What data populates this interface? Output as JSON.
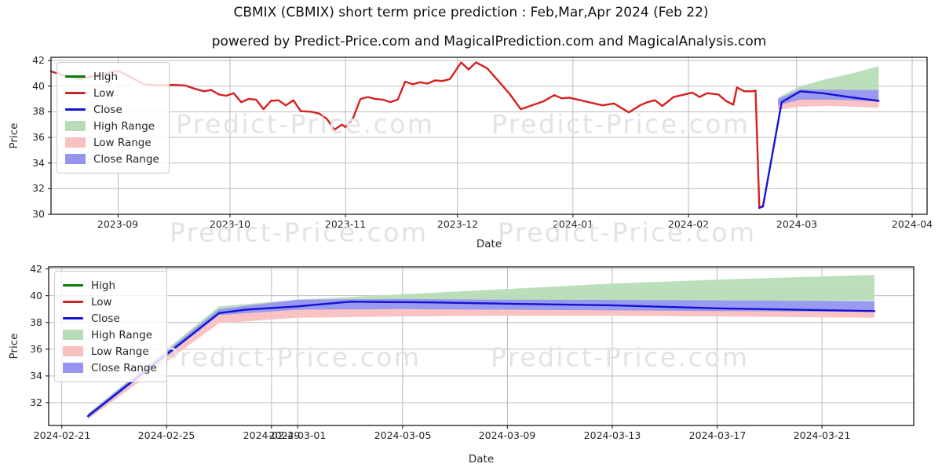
{
  "page": {
    "title": "CBMIX (CBMIX) short term price prediction : Feb,Mar,Apr 2024 (Feb 22)",
    "subtitle": "powered by Predict-Price.com and MagicalPrediction.com and MagicalAnalysis.com",
    "watermark": "Predict-Price.com"
  },
  "legend": {
    "items": [
      {
        "label": "High",
        "type": "line",
        "color": "#067d06"
      },
      {
        "label": "Low",
        "type": "line",
        "color": "#c62828"
      },
      {
        "label": "Close",
        "type": "line",
        "color": "#1414d2"
      },
      {
        "label": "High Range",
        "type": "patch",
        "color": "#b7dcb7"
      },
      {
        "label": "Low Range",
        "type": "patch",
        "color": "#f9c0c0"
      },
      {
        "label": "Close Range",
        "type": "patch",
        "color": "#9595f0"
      }
    ],
    "position": "upper left"
  },
  "chart_data": [
    {
      "panel": "top",
      "type": "line",
      "xlabel": "Date",
      "ylabel": "Price",
      "grid": true,
      "ylim": [
        30.0,
        42.25
      ],
      "yticks": [
        30,
        32,
        34,
        36,
        38,
        40,
        42
      ],
      "xlim": [
        "2023-08-14",
        "2024-04-05"
      ],
      "xticks": [
        {
          "date": "2023-09-01",
          "label": "2023-09"
        },
        {
          "date": "2023-10-01",
          "label": "2023-10"
        },
        {
          "date": "2023-11-01",
          "label": "2023-11"
        },
        {
          "date": "2023-12-01",
          "label": "2023-12"
        },
        {
          "date": "2024-01-01",
          "label": "2024-01"
        },
        {
          "date": "2024-02-01",
          "label": "2024-02"
        },
        {
          "date": "2024-03-01",
          "label": "2024-03"
        },
        {
          "date": "2024-04-01",
          "label": "2024-04"
        }
      ],
      "bands": [
        {
          "name": "High Range",
          "color": "#b7dcb7",
          "points": [
            [
              "2024-02-25",
              38.85,
              39.1
            ],
            [
              "2024-03-02",
              39.6,
              40.0
            ],
            [
              "2024-03-09",
              39.6,
              40.55
            ],
            [
              "2024-03-16",
              39.65,
              41.0
            ],
            [
              "2024-03-23",
              39.7,
              41.55
            ]
          ]
        },
        {
          "name": "Low Range",
          "color": "#f9c0c0",
          "points": [
            [
              "2024-02-25",
              38.15,
              38.75
            ],
            [
              "2024-03-02",
              38.4,
              39.1
            ],
            [
              "2024-03-09",
              38.45,
              39.0
            ],
            [
              "2024-03-16",
              38.4,
              38.95
            ],
            [
              "2024-03-23",
              38.3,
              38.9
            ]
          ]
        },
        {
          "name": "Close Range",
          "color": "#9595f0",
          "points": [
            [
              "2024-02-25",
              38.5,
              39.0
            ],
            [
              "2024-03-02",
              38.95,
              39.75
            ],
            [
              "2024-03-09",
              38.95,
              39.72
            ],
            [
              "2024-03-16",
              38.9,
              39.7
            ],
            [
              "2024-03-23",
              38.8,
              39.7
            ]
          ]
        }
      ],
      "series": [
        {
          "name": "Low",
          "color": "#d81f1f",
          "points": [
            [
              "2023-08-14",
              41.15
            ],
            [
              "2023-08-18",
              40.8
            ],
            [
              "2023-08-22",
              40.55
            ],
            [
              "2023-08-27",
              40.9
            ],
            [
              "2023-09-01",
              41.2
            ],
            [
              "2023-09-05",
              40.6
            ],
            [
              "2023-09-08",
              40.15
            ],
            [
              "2023-09-12",
              40.05
            ],
            [
              "2023-09-16",
              40.1
            ],
            [
              "2023-09-19",
              40.05
            ],
            [
              "2023-09-21",
              39.85
            ],
            [
              "2023-09-24",
              39.6
            ],
            [
              "2023-09-26",
              39.7
            ],
            [
              "2023-09-28",
              39.35
            ],
            [
              "2023-09-30",
              39.25
            ],
            [
              "2023-10-02",
              39.45
            ],
            [
              "2023-10-04",
              38.75
            ],
            [
              "2023-10-06",
              39.0
            ],
            [
              "2023-10-08",
              38.95
            ],
            [
              "2023-10-10",
              38.2
            ],
            [
              "2023-10-12",
              38.85
            ],
            [
              "2023-10-14",
              38.9
            ],
            [
              "2023-10-16",
              38.5
            ],
            [
              "2023-10-18",
              38.9
            ],
            [
              "2023-10-20",
              38.05
            ],
            [
              "2023-10-23",
              38.0
            ],
            [
              "2023-10-25",
              37.85
            ],
            [
              "2023-10-27",
              37.45
            ],
            [
              "2023-10-29",
              36.6
            ],
            [
              "2023-10-31",
              37.0
            ],
            [
              "2023-11-01",
              36.8
            ],
            [
              "2023-11-03",
              37.5
            ],
            [
              "2023-11-05",
              39.0
            ],
            [
              "2023-11-07",
              39.15
            ],
            [
              "2023-11-09",
              39.0
            ],
            [
              "2023-11-11",
              38.95
            ],
            [
              "2023-11-13",
              38.75
            ],
            [
              "2023-11-15",
              38.95
            ],
            [
              "2023-11-17",
              40.35
            ],
            [
              "2023-11-19",
              40.15
            ],
            [
              "2023-11-21",
              40.3
            ],
            [
              "2023-11-23",
              40.2
            ],
            [
              "2023-11-25",
              40.45
            ],
            [
              "2023-11-27",
              40.4
            ],
            [
              "2023-11-29",
              40.55
            ],
            [
              "2023-12-02",
              41.85
            ],
            [
              "2023-12-04",
              41.3
            ],
            [
              "2023-12-06",
              41.85
            ],
            [
              "2023-12-09",
              41.4
            ],
            [
              "2023-12-12",
              40.4
            ],
            [
              "2023-12-15",
              39.4
            ],
            [
              "2023-12-18",
              38.2
            ],
            [
              "2023-12-21",
              38.5
            ],
            [
              "2023-12-24",
              38.8
            ],
            [
              "2023-12-27",
              39.3
            ],
            [
              "2023-12-29",
              39.05
            ],
            [
              "2023-12-31",
              39.1
            ],
            [
              "2024-01-03",
              38.9
            ],
            [
              "2024-01-06",
              38.7
            ],
            [
              "2024-01-09",
              38.5
            ],
            [
              "2024-01-12",
              38.65
            ],
            [
              "2024-01-16",
              37.95
            ],
            [
              "2024-01-19",
              38.5
            ],
            [
              "2024-01-21",
              38.75
            ],
            [
              "2024-01-23",
              38.9
            ],
            [
              "2024-01-25",
              38.45
            ],
            [
              "2024-01-28",
              39.15
            ],
            [
              "2024-01-31",
              39.35
            ],
            [
              "2024-02-02",
              39.5
            ],
            [
              "2024-02-04",
              39.15
            ],
            [
              "2024-02-06",
              39.45
            ],
            [
              "2024-02-09",
              39.35
            ],
            [
              "2024-02-11",
              38.85
            ],
            [
              "2024-02-13",
              38.55
            ],
            [
              "2024-02-14",
              39.9
            ],
            [
              "2024-02-16",
              39.6
            ],
            [
              "2024-02-18",
              39.6
            ],
            [
              "2024-02-19",
              39.65
            ],
            [
              "2024-02-20",
              30.5
            ],
            [
              "2024-02-21",
              30.6
            ]
          ]
        },
        {
          "name": "Close",
          "color": "#1414d2",
          "points": [
            [
              "2024-02-20",
              30.5
            ],
            [
              "2024-02-21",
              30.65
            ],
            [
              "2024-02-26",
              38.75
            ],
            [
              "2024-03-02",
              39.6
            ],
            [
              "2024-03-08",
              39.45
            ],
            [
              "2024-03-15",
              39.15
            ],
            [
              "2024-03-23",
              38.85
            ]
          ]
        }
      ]
    },
    {
      "panel": "bottom",
      "type": "line",
      "xlabel": "Date",
      "ylabel": "Price",
      "grid": true,
      "ylim": [
        30.3,
        42.15
      ],
      "yticks": [
        32,
        34,
        36,
        38,
        40,
        42
      ],
      "xlim": [
        "2024-02-20T12:00:00",
        "2024-03-24T12:00:00"
      ],
      "xticks": [
        {
          "date": "2024-02-21",
          "label": "2024-02-21"
        },
        {
          "date": "2024-02-25",
          "label": "2024-02-25"
        },
        {
          "date": "2024-02-29",
          "label": "2024-02-29"
        },
        {
          "date": "2024-03-01",
          "label": "2024-03-01"
        },
        {
          "date": "2024-03-05",
          "label": "2024-03-05"
        },
        {
          "date": "2024-03-09",
          "label": "2024-03-09"
        },
        {
          "date": "2024-03-13",
          "label": "2024-03-13"
        },
        {
          "date": "2024-03-17",
          "label": "2024-03-17"
        },
        {
          "date": "2024-03-21",
          "label": "2024-03-21"
        }
      ],
      "bands": [
        {
          "name": "High Range",
          "color": "#b7dcb7",
          "points": [
            [
              "2024-02-22",
              30.9,
              31.2
            ],
            [
              "2024-02-27",
              38.85,
              39.2
            ],
            [
              "2024-03-01",
              39.3,
              39.7
            ],
            [
              "2024-03-05",
              39.45,
              40.1
            ],
            [
              "2024-03-09",
              39.5,
              40.5
            ],
            [
              "2024-03-13",
              39.55,
              40.9
            ],
            [
              "2024-03-17",
              39.6,
              41.2
            ],
            [
              "2024-03-23",
              39.65,
              41.55
            ]
          ]
        },
        {
          "name": "Low Range",
          "color": "#f9c0c0",
          "points": [
            [
              "2024-02-22",
              30.75,
              31.05
            ],
            [
              "2024-02-27",
              37.95,
              38.6
            ],
            [
              "2024-03-01",
              38.35,
              39.0
            ],
            [
              "2024-03-05",
              38.45,
              39.05
            ],
            [
              "2024-03-09",
              38.5,
              39.0
            ],
            [
              "2024-03-13",
              38.5,
              38.95
            ],
            [
              "2024-03-17",
              38.45,
              38.9
            ],
            [
              "2024-03-23",
              38.35,
              38.85
            ]
          ]
        },
        {
          "name": "Close Range",
          "color": "#9595f0",
          "points": [
            [
              "2024-02-22",
              30.85,
              31.15
            ],
            [
              "2024-02-27",
              38.55,
              39.0
            ],
            [
              "2024-03-01",
              38.95,
              39.7
            ],
            [
              "2024-03-05",
              39.0,
              39.75
            ],
            [
              "2024-03-09",
              38.95,
              39.7
            ],
            [
              "2024-03-13",
              38.9,
              39.68
            ],
            [
              "2024-03-17",
              38.85,
              39.65
            ],
            [
              "2024-03-23",
              38.8,
              39.6
            ]
          ]
        }
      ],
      "series": [
        {
          "name": "Close",
          "color": "#1414d2",
          "points": [
            [
              "2024-02-22",
              31.0
            ],
            [
              "2024-02-27",
              38.7
            ],
            [
              "2024-02-28",
              38.95
            ],
            [
              "2024-03-01",
              39.2
            ],
            [
              "2024-03-03",
              39.55
            ],
            [
              "2024-03-06",
              39.5
            ],
            [
              "2024-03-09",
              39.4
            ],
            [
              "2024-03-13",
              39.28
            ],
            [
              "2024-03-17",
              39.05
            ],
            [
              "2024-03-23",
              38.85
            ]
          ]
        }
      ]
    }
  ]
}
